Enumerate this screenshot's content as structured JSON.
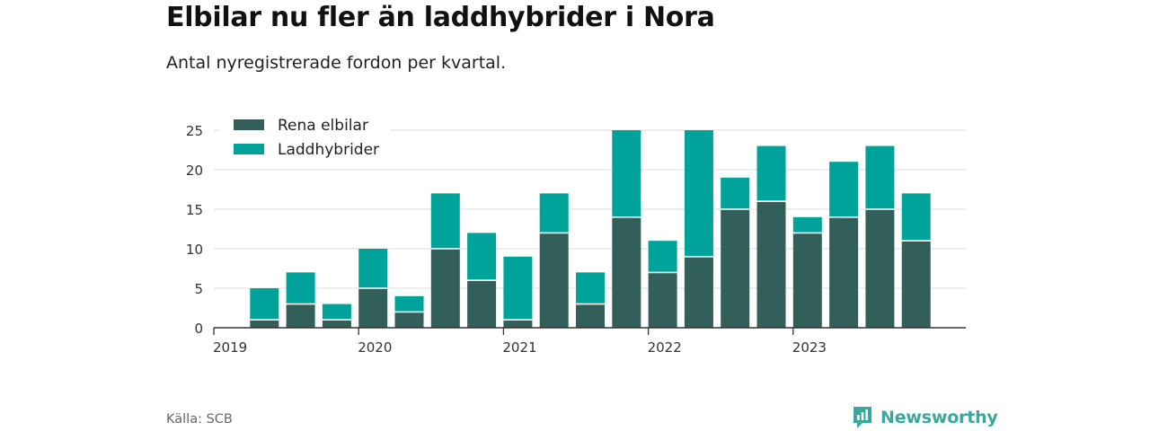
{
  "title": "Elbilar nu fler än laddhybrider i Nora",
  "subtitle": "Antal nyregistrerade fordon per kvartal.",
  "source": "Källa: SCB",
  "brand": "Newsworthy",
  "colors": {
    "electric": "#335f5a",
    "hybrid": "#00a39a",
    "grid": "#dddddd",
    "axis": "#333333",
    "brand": "#3aa89a"
  },
  "chart_data": {
    "type": "bar",
    "stacked": true,
    "title": "Elbilar nu fler än laddhybrider i Nora",
    "ylim": [
      0,
      25
    ],
    "yticks": [
      0,
      5,
      10,
      15,
      20,
      25
    ],
    "xticks": [
      "2019",
      "2020",
      "2021",
      "2022",
      "2023"
    ],
    "legend_position": "top-left",
    "categories": [
      "2019 Q1",
      "2019 Q2",
      "2019 Q3",
      "2019 Q4",
      "2020 Q1",
      "2020 Q2",
      "2020 Q3",
      "2020 Q4",
      "2021 Q1",
      "2021 Q2",
      "2021 Q3",
      "2021 Q4",
      "2022 Q1",
      "2022 Q2",
      "2022 Q3",
      "2022 Q4",
      "2023 Q1",
      "2023 Q2",
      "2023 Q3",
      "2023 Q4"
    ],
    "series": [
      {
        "name": "Rena elbilar",
        "values": [
          0,
          1,
          3,
          1,
          5,
          2,
          10,
          6,
          1,
          12,
          3,
          14,
          7,
          9,
          15,
          16,
          12,
          14,
          15,
          11
        ]
      },
      {
        "name": "Laddhybrider",
        "values": [
          0,
          4,
          4,
          2,
          5,
          2,
          7,
          6,
          8,
          5,
          4,
          11,
          4,
          16,
          4,
          7,
          2,
          7,
          8,
          6
        ]
      }
    ]
  }
}
